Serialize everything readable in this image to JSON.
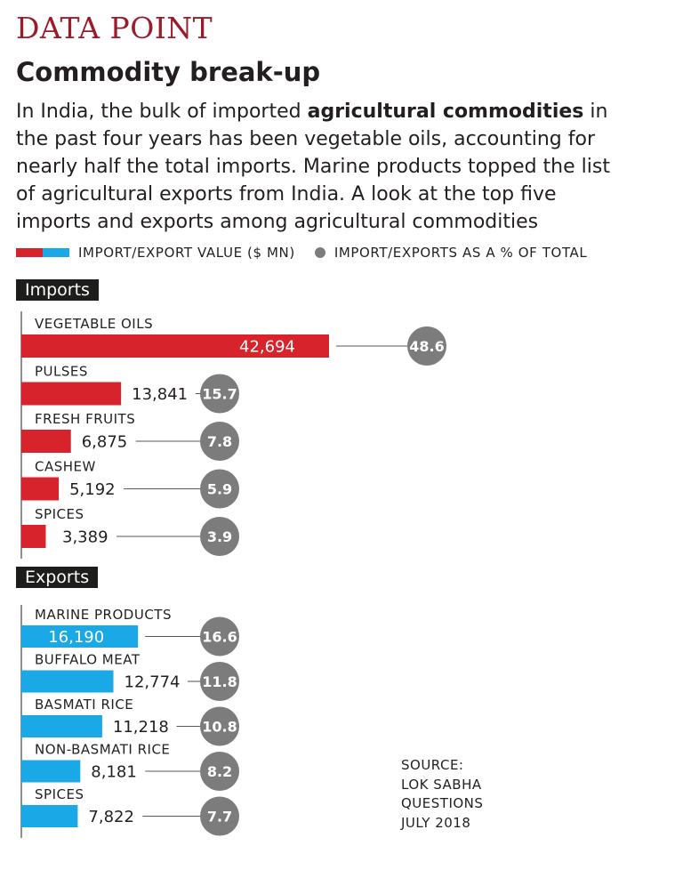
{
  "header": {
    "brand": "DATA POINT",
    "title": "Commodity break-up",
    "desc_pre": "In India, the bulk of imported ",
    "desc_bold": "agricultural commodities",
    "desc_post": " in the past four years has been vegetable oils, accounting for nearly half the total imports. Marine products topped the list of agricultural exports from India. A look at the top five imports and exports among agricultural commodities"
  },
  "legend": {
    "value_label": "IMPORT/EXPORT VALUE ($ MN)",
    "pct_label": "IMPORT/EXPORTS AS A % OF TOTAL"
  },
  "colors": {
    "imports": "#d7232b",
    "exports": "#1aa8e6",
    "bubble": "#7c7c7c"
  },
  "chart_data": [
    {
      "type": "bar",
      "section": "Imports",
      "categories": [
        "VEGETABLE OILS",
        "PULSES",
        "FRESH FRUITS",
        "CASHEW",
        "SPICES"
      ],
      "values": [
        42694,
        13841,
        6875,
        5192,
        3389
      ],
      "value_labels": [
        "42,694",
        "13,841",
        "6,875",
        "5,192",
        "3,389"
      ],
      "percent": [
        48.6,
        15.7,
        7.8,
        5.9,
        3.9
      ],
      "percent_labels": [
        "48.6",
        "15.7",
        "7.8",
        "5.9",
        "3.9"
      ]
    },
    {
      "type": "bar",
      "section": "Exports",
      "categories": [
        "MARINE PRODUCTS",
        "BUFFALO MEAT",
        "BASMATI RICE",
        "NON-BASMATI RICE",
        "SPICES"
      ],
      "values": [
        16190,
        12774,
        11218,
        8181,
        7822
      ],
      "value_labels": [
        "16,190",
        "12,774",
        "11,218",
        "8,181",
        "7,822"
      ],
      "percent": [
        16.6,
        11.8,
        10.8,
        8.2,
        7.7
      ],
      "percent_labels": [
        "16.6",
        "11.8",
        "10.8",
        "8.2",
        "7.7"
      ]
    }
  ],
  "source": {
    "line1": "SOURCE:",
    "line2": "LOK SABHA",
    "line3": "QUESTIONS",
    "line4": "JULY 2018"
  }
}
